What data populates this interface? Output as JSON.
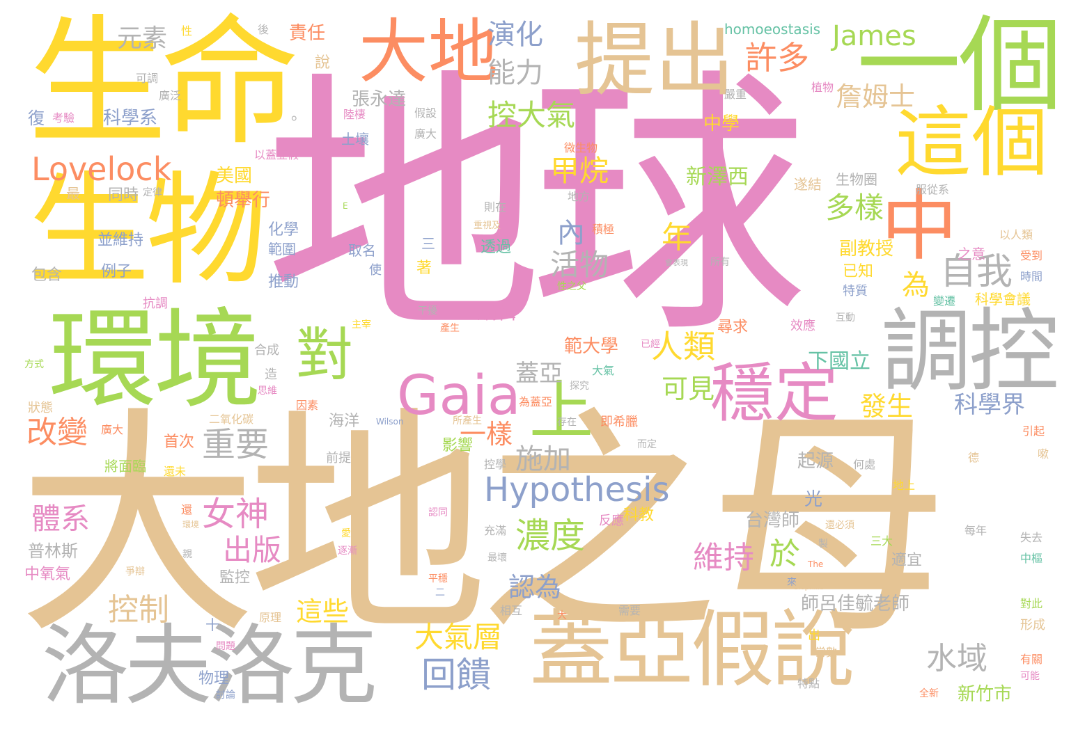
{
  "palette": {
    "pink": "#e68ac3",
    "tan": "#e5c494",
    "yellow": "#ffd92f",
    "green": "#a6d854",
    "orange": "#fc8d62",
    "blue": "#8da0cb",
    "grey": "#b3b3b3",
    "teal": "#66c2a5"
  },
  "words": [
    "地球",
    "大地之母",
    "生命",
    "生物",
    "環境",
    "一個",
    "提出",
    "大地",
    "這個",
    "調控",
    "蓋亞假說",
    "洛夫洛克",
    "Gaia",
    "中",
    "穩定",
    "上",
    "對",
    "Hypothesis",
    "Lovelock",
    "James",
    "自我",
    "元素",
    "演化",
    "能力",
    "許多",
    "詹姆士",
    "控大氣",
    "甲烷",
    "多樣",
    "人類",
    "年",
    "活物",
    "內",
    "為",
    "重要",
    "施加",
    "女神",
    "出版",
    "濃度",
    "回饋",
    "於",
    "維持",
    "大氣層",
    "水域",
    "改變",
    "體系",
    "控制",
    "這些",
    "認為",
    "一樣",
    "蓋亞",
    "可見",
    "發生",
    "科學界",
    "下國立",
    "範大學",
    "台灣師",
    "師呂佳毓老師",
    "新竹市",
    "副教授",
    "新澤西",
    "美國",
    "中學",
    "張永達",
    "科學系",
    "責任",
    "說",
    "homoeostasis",
    "起源",
    "光",
    "普林斯",
    "中氧氣",
    "監控",
    "物理",
    "海洋",
    "首次",
    "將面臨",
    "復",
    "最",
    "同時",
    "頓舉行",
    "包含",
    "例子",
    "抗調",
    "並維持",
    "化學",
    "範圍",
    "推動",
    "編輯",
    "影響",
    "適宜",
    "已知",
    "科學會議",
    "特質",
    "尋求",
    "效應",
    "遂結",
    "生物圈",
    "地方",
    "則在",
    "透過",
    "取名",
    "使",
    "三",
    "著",
    "陸棲",
    "土壤",
    "微生物",
    "假設",
    "廣大",
    "植物",
    "嚴重",
    "考驗",
    "可調",
    "廣泛",
    "性",
    "後",
    "以蓋亞假",
    "定律",
    "服從系",
    "之意",
    "以人類",
    "受到",
    "時間",
    "變遷",
    "積極",
    "所有",
    "性之父",
    "干擾",
    "產生",
    "主宰",
    "方式",
    "合成",
    "造",
    "狀態",
    "思維",
    "因素",
    "大氣",
    "探究",
    "為蓋亞",
    "存在",
    "二氧化碳",
    "即希臘",
    "而定",
    "所產生",
    "Wilson",
    "廣大",
    "還未",
    "前提",
    "控學",
    "德",
    "何處",
    "地上",
    "每年",
    "失去",
    "中樞",
    "對此",
    "形成",
    "有關",
    "可能",
    "全新",
    "常數",
    "特點",
    "出",
    "來",
    "Biophilia",
    "The",
    "製",
    "還必須",
    "反應",
    "科教",
    "充滿",
    "最壞",
    "認同",
    "爭辯",
    "平穩",
    "二",
    "相互",
    "大",
    "需要",
    "十",
    "問題",
    "討論",
    "原理",
    "還",
    "環境",
    "親",
    "逐漸",
    "愛",
    "引起",
    "嗽",
    "三大",
    "已經",
    "。",
    "E",
    "重視及",
    "會表現",
    "互動"
  ]
}
